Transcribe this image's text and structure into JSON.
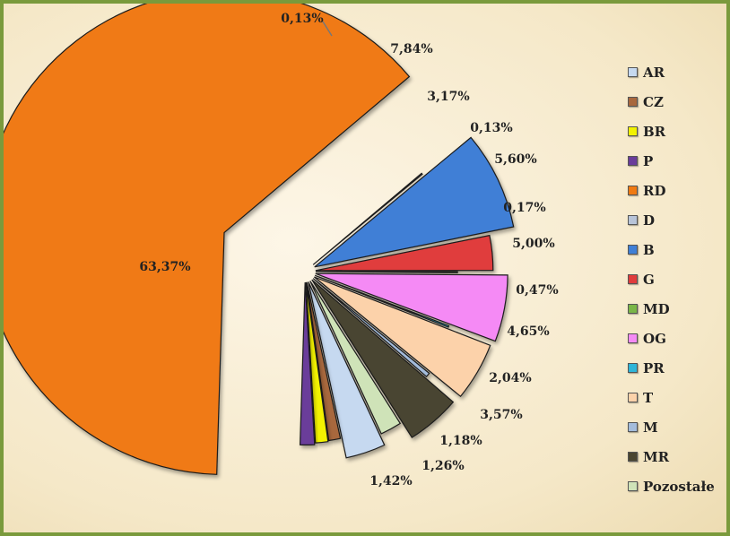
{
  "chart_data": {
    "type": "pie",
    "title": "",
    "legend_position": "right",
    "slices": [
      {
        "name": "AR",
        "value": 3.57,
        "label": "3,57%",
        "color": "#c6d9f0"
      },
      {
        "name": "CZ",
        "value": 1.18,
        "label": "1,18%",
        "color": "#a8683e"
      },
      {
        "name": "BR",
        "value": 1.26,
        "label": "1,26%",
        "color": "#f2f200"
      },
      {
        "name": "P",
        "value": 1.42,
        "label": "1,42%",
        "color": "#6a3d9a"
      },
      {
        "name": "RD",
        "value": 63.37,
        "label": "63,37%",
        "color": "#f07a12"
      },
      {
        "name": "D",
        "value": 0.13,
        "label": "0,13%",
        "color": "#b8c4d8"
      },
      {
        "name": "B",
        "value": 7.84,
        "label": "7,84%",
        "color": "#3f7fd6"
      },
      {
        "name": "G",
        "value": 3.17,
        "label": "3,17%",
        "color": "#e03c3c"
      },
      {
        "name": "MD",
        "value": 0.13,
        "label": "0,13%",
        "color": "#7ab648"
      },
      {
        "name": "OG",
        "value": 5.6,
        "label": "5,60%",
        "color": "#f58af5"
      },
      {
        "name": "PR",
        "value": 0.17,
        "label": "0,17%",
        "color": "#2fb5d8"
      },
      {
        "name": "T",
        "value": 5.0,
        "label": "5,00%",
        "color": "#fcd2aa"
      },
      {
        "name": "M",
        "value": 0.47,
        "label": "0,47%",
        "color": "#a4bcdb"
      },
      {
        "name": "MR",
        "value": 4.65,
        "label": "4,65%",
        "color": "#4a4530"
      },
      {
        "name": "Pozostałe",
        "value": 2.04,
        "label": "2,04%",
        "color": "#cfe3b8"
      }
    ],
    "legend_order": [
      "AR",
      "CZ",
      "BR",
      "P",
      "RD",
      "D",
      "B",
      "G",
      "MD",
      "OG",
      "PR",
      "T",
      "M",
      "MR",
      "Pozostałe"
    ]
  }
}
